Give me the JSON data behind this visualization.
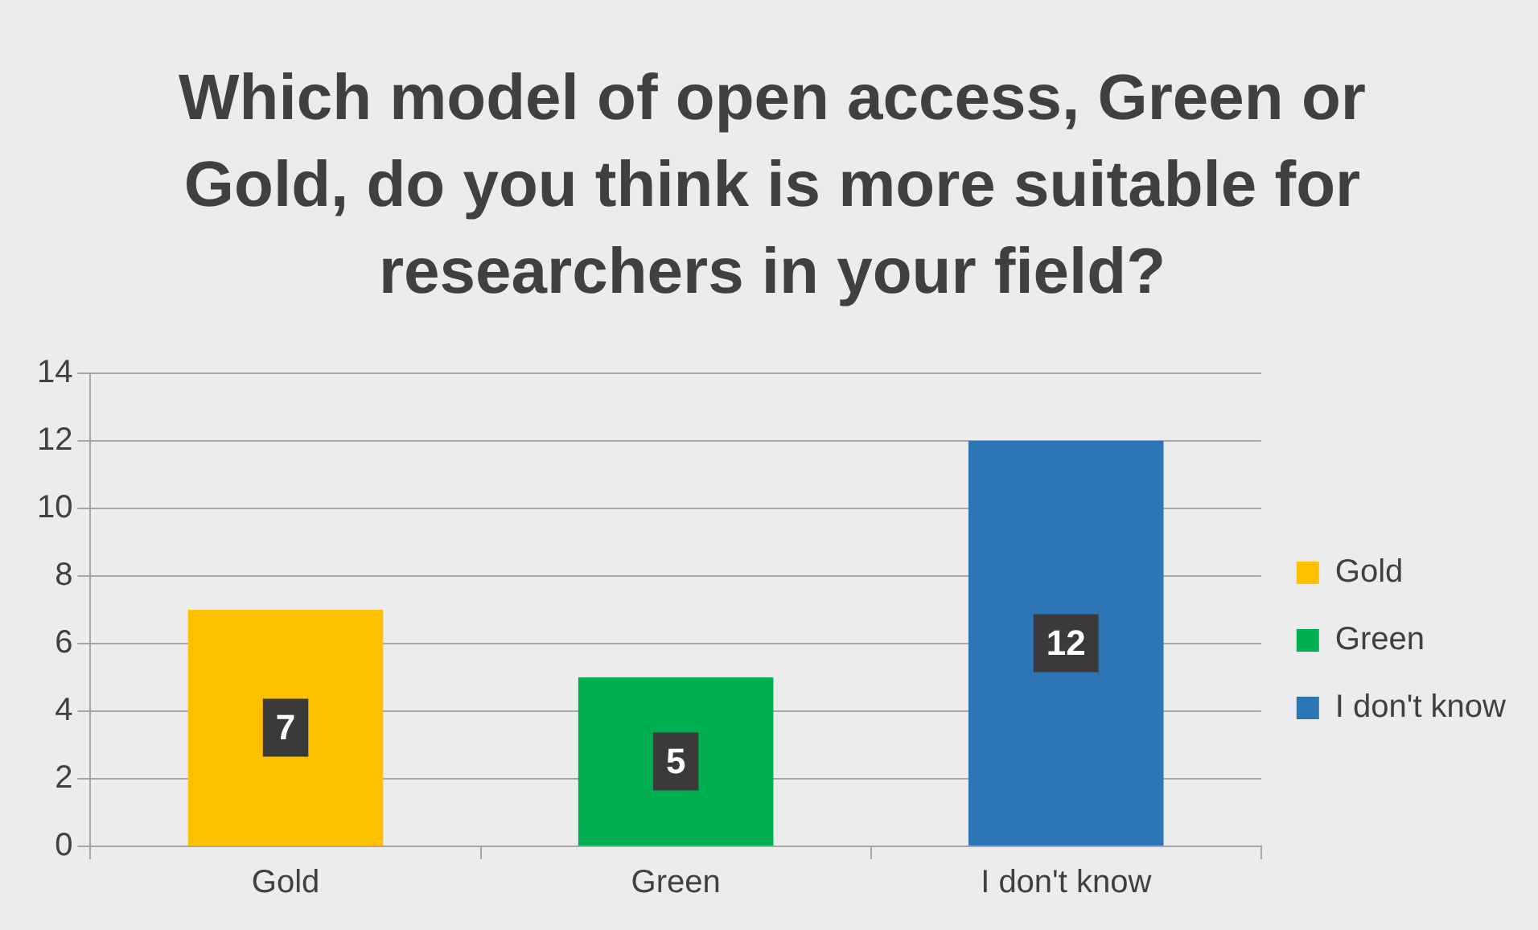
{
  "chart_data": {
    "type": "bar",
    "title": "Which model of open access, Green or Gold, do you think is more suitable for researchers in your field?",
    "categories": [
      "Gold",
      "Green",
      "I don't know"
    ],
    "series": [
      {
        "name": "Gold",
        "color": "#ffc000",
        "values": [
          7,
          null,
          null
        ]
      },
      {
        "name": "Green",
        "color": "#00b050",
        "values": [
          null,
          5,
          null
        ]
      },
      {
        "name": "I don't know",
        "color": "#2e75b6",
        "values": [
          null,
          null,
          12
        ]
      }
    ],
    "ylim": [
      0,
      14
    ],
    "yticks": [
      0,
      2,
      4,
      6,
      8,
      10,
      12,
      14
    ],
    "grid": "y",
    "legend": "right",
    "data_labels": true
  }
}
